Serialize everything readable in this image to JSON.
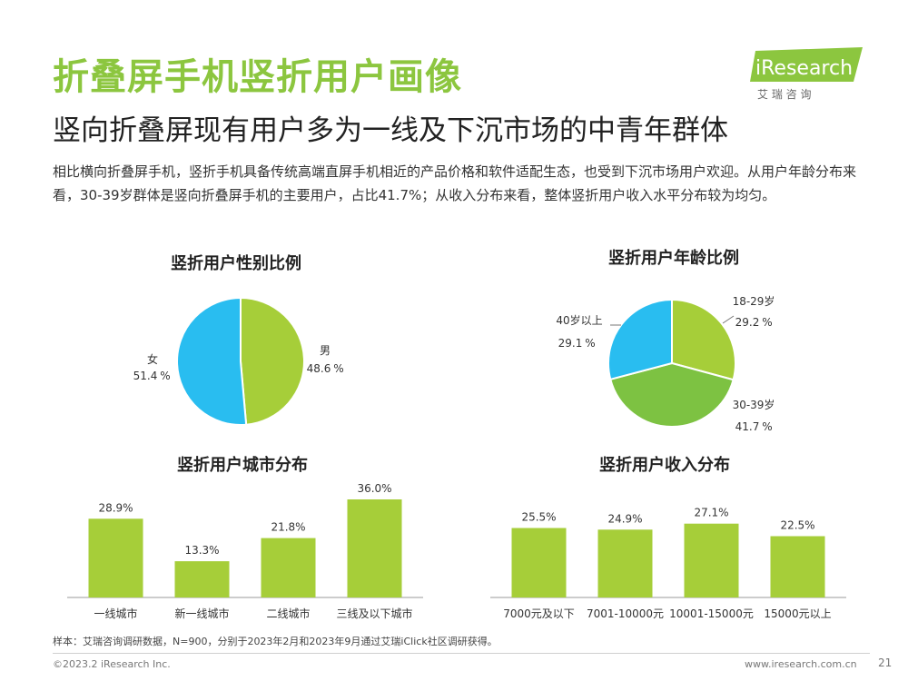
{
  "header": {
    "title": "折叠屏手机竖折用户画像",
    "subtitle": "竖向折叠屏现有用户多为一线及下沉市场的中青年群体",
    "description": "相比横向折叠屏手机，竖折手机具备传统高端直屏手机相近的产品价格和软件适配生态，也受到下沉市场用户欢迎。从用户年龄分布来看，30-39岁群体是竖向折叠屏手机的主要用户，占比41.7%；从收入分布来看，整体竖折用户收入水平分布较为均匀。"
  },
  "logo": {
    "brand": "iResearch",
    "sub": "艾 瑞 咨 询"
  },
  "colors": {
    "accent": "#8cc63f",
    "green": "#a6ce39",
    "green_dark": "#7dc242",
    "blue": "#29bdf0"
  },
  "chart_data": [
    {
      "type": "pie",
      "title": "竖折用户性别比例",
      "unit": "%",
      "slices": [
        {
          "name": "男",
          "value": 48.6,
          "color": "#a6ce39"
        },
        {
          "name": "女",
          "value": 51.4,
          "color": "#29bdf0"
        }
      ]
    },
    {
      "type": "pie",
      "title": "竖折用户年龄比例",
      "unit": "%",
      "slices": [
        {
          "name": "18-29岁",
          "value": 29.2,
          "color": "#a6ce39"
        },
        {
          "name": "30-39岁",
          "value": 41.7,
          "color": "#7dc242"
        },
        {
          "name": "40岁以上",
          "value": 29.1,
          "color": "#29bdf0"
        }
      ]
    },
    {
      "type": "bar",
      "title": "竖折用户城市分布",
      "unit": "%",
      "categories": [
        "一线城市",
        "新一线城市",
        "二线城市",
        "三线及以下城市"
      ],
      "values": [
        28.9,
        13.3,
        21.8,
        36.0
      ],
      "ylim": [
        0,
        40
      ]
    },
    {
      "type": "bar",
      "title": "竖折用户收入分布",
      "unit": "%",
      "categories": [
        "7000元及以下",
        "7001-10000元",
        "10001-15000元",
        "15000元以上"
      ],
      "values": [
        25.5,
        24.9,
        27.1,
        22.5
      ],
      "ylim": [
        0,
        40
      ]
    }
  ],
  "footer": {
    "source": "样本：艾瑞咨询调研数据，N=900，分别于2023年2月和2023年9月通过艾瑞iClick社区调研获得。",
    "copyright": "©2023.2 iResearch Inc.",
    "url": "www.iresearch.com.cn",
    "page": "21"
  }
}
